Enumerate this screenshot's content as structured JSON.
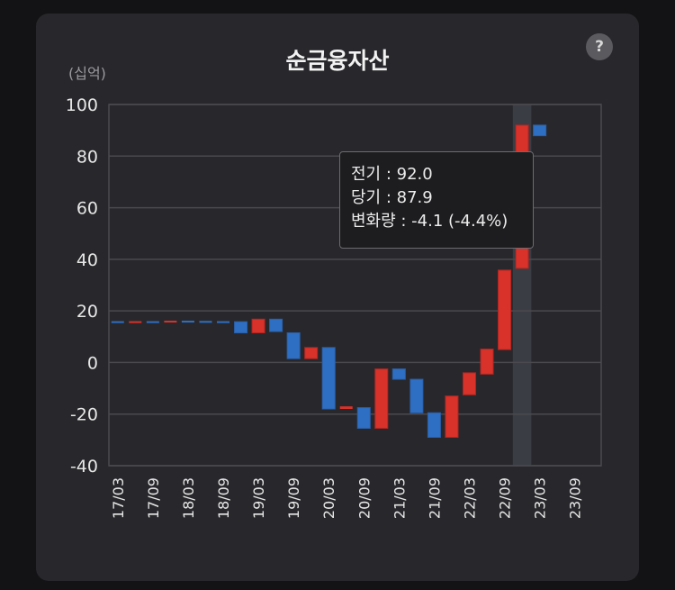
{
  "header": {
    "title": "순금융자산",
    "unit_label": "(십억)",
    "help_label": "?"
  },
  "tooltip": {
    "line1": "전기 : 92.0",
    "line2": "당기 : 87.9",
    "line3": "변화량 : -4.1 (-4.4%)"
  },
  "colors": {
    "increase": "#d8322a",
    "decrease": "#2f6fc3",
    "highlight": "#3a3d44",
    "grid": "#4a4a4e",
    "axis_text": "#e6e6e6"
  },
  "chart_data": {
    "type": "waterfall",
    "ylim": [
      -40,
      100
    ],
    "y_ticks": [
      100,
      80,
      60,
      40,
      20,
      0,
      -20,
      -40
    ],
    "x_tick_labels": [
      "17/03",
      "17/09",
      "18/03",
      "18/09",
      "19/03",
      "19/09",
      "20/03",
      "20/09",
      "21/03",
      "21/09",
      "22/03",
      "22/09",
      "23/03",
      "23/09"
    ],
    "highlight_period": 23,
    "periods": [
      {
        "open": 16.0,
        "close": 15.8,
        "dir": "down"
      },
      {
        "open": 15.8,
        "close": 16.0,
        "dir": "up"
      },
      {
        "open": 16.0,
        "close": 15.9,
        "dir": "down"
      },
      {
        "open": 15.9,
        "close": 16.2,
        "dir": "up"
      },
      {
        "open": 16.2,
        "close": 16.1,
        "dir": "down"
      },
      {
        "open": 16.1,
        "close": 16.0,
        "dir": "down"
      },
      {
        "open": 16.0,
        "close": 15.8,
        "dir": "down"
      },
      {
        "open": 15.8,
        "close": 11.5,
        "dir": "down"
      },
      {
        "open": 11.5,
        "close": 16.8,
        "dir": "up"
      },
      {
        "open": 16.8,
        "close": 12.0,
        "dir": "down"
      },
      {
        "open": 11.5,
        "close": 1.5,
        "dir": "down"
      },
      {
        "open": 1.5,
        "close": 5.8,
        "dir": "up"
      },
      {
        "open": 5.8,
        "close": -18.0,
        "dir": "down"
      },
      {
        "open": -18.0,
        "close": -17.0,
        "dir": "up"
      },
      {
        "open": -17.5,
        "close": -25.5,
        "dir": "down"
      },
      {
        "open": -25.5,
        "close": -2.5,
        "dir": "up"
      },
      {
        "open": -2.5,
        "close": -6.5,
        "dir": "down"
      },
      {
        "open": -6.5,
        "close": -19.5,
        "dir": "down"
      },
      {
        "open": -19.5,
        "close": -29.0,
        "dir": "down"
      },
      {
        "open": -29.0,
        "close": -13.0,
        "dir": "up"
      },
      {
        "open": -12.5,
        "close": -4.0,
        "dir": "up"
      },
      {
        "open": -4.5,
        "close": 5.2,
        "dir": "up"
      },
      {
        "open": 5.0,
        "close": 35.8,
        "dir": "up"
      },
      {
        "open": 36.5,
        "close": 92.0,
        "dir": "up"
      },
      {
        "open": 92.0,
        "close": 87.9,
        "dir": "down"
      }
    ]
  }
}
